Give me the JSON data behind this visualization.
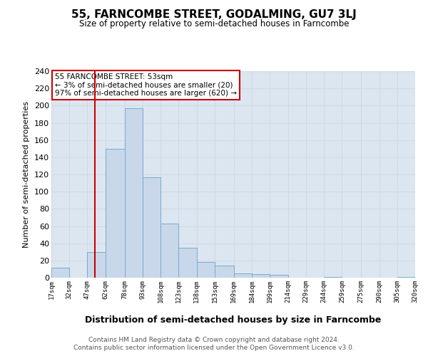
{
  "title": "55, FARNCOMBE STREET, GODALMING, GU7 3LJ",
  "subtitle": "Size of property relative to semi-detached houses in Farncombe",
  "xlabel": "Distribution of semi-detached houses by size in Farncombe",
  "ylabel": "Number of semi-detached properties",
  "bar_color": "#c8d8ea",
  "bar_edge_color": "#7aaace",
  "grid_color": "#d0d8e4",
  "bg_color": "#dce6f0",
  "annotation_text": "55 FARNCOMBE STREET: 53sqm\n← 3% of semi-detached houses are smaller (20)\n97% of semi-detached houses are larger (620) →",
  "vline_x": 53,
  "vline_color": "#cc0000",
  "bin_edges": [
    17,
    32,
    47,
    62,
    78,
    93,
    108,
    123,
    138,
    153,
    169,
    184,
    199,
    214,
    229,
    244,
    259,
    275,
    290,
    305,
    320
  ],
  "bin_counts": [
    12,
    0,
    30,
    150,
    197,
    117,
    63,
    35,
    18,
    14,
    5,
    4,
    3,
    0,
    0,
    1,
    0,
    0,
    0,
    1
  ],
  "tick_labels": [
    "17sqm",
    "32sqm",
    "47sqm",
    "62sqm",
    "78sqm",
    "93sqm",
    "108sqm",
    "123sqm",
    "138sqm",
    "153sqm",
    "169sqm",
    "184sqm",
    "199sqm",
    "214sqm",
    "229sqm",
    "244sqm",
    "259sqm",
    "275sqm",
    "290sqm",
    "305sqm",
    "320sqm"
  ],
  "ylim": [
    0,
    240
  ],
  "yticks": [
    0,
    20,
    40,
    60,
    80,
    100,
    120,
    140,
    160,
    180,
    200,
    220,
    240
  ],
  "footer_line1": "Contains HM Land Registry data © Crown copyright and database right 2024.",
  "footer_line2": "Contains public sector information licensed under the Open Government Licence v3.0."
}
